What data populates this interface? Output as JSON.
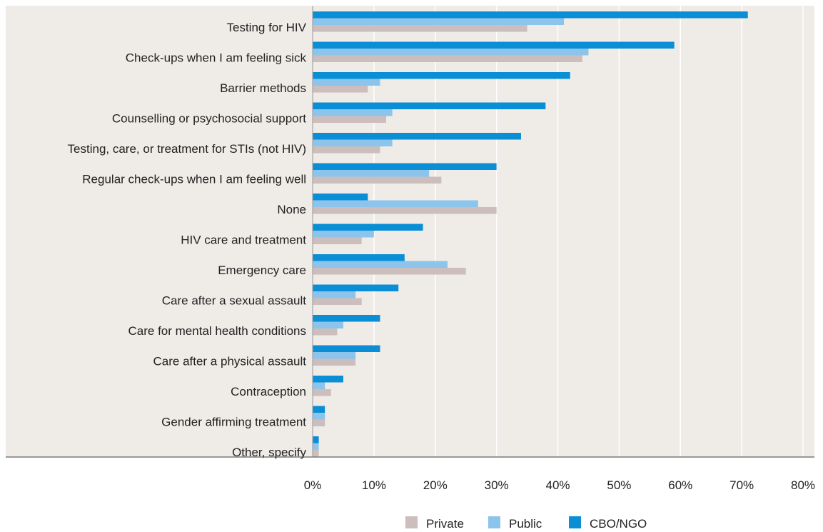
{
  "chart_data": {
    "type": "bar",
    "orientation": "horizontal",
    "categories": [
      "Testing for HIV",
      "Check-ups when I am feeling sick",
      "Barrier methods",
      "Counselling or psychosocial support",
      "Testing, care, or treatment for STIs (not HIV)",
      "Regular check-ups when I am feeling well",
      "None",
      "HIV care and treatment",
      "Emergency care",
      "Care after a sexual assault",
      "Care for mental health conditions",
      "Care after a physical assault",
      "Contraception",
      "Gender affirming treatment",
      "Other, specify"
    ],
    "series": [
      {
        "name": "CBO/NGO",
        "values": [
          71,
          59,
          42,
          38,
          34,
          30,
          9,
          18,
          15,
          14,
          11,
          11,
          5,
          2,
          1
        ]
      },
      {
        "name": "Public",
        "values": [
          41,
          45,
          11,
          13,
          13,
          19,
          27,
          10,
          22,
          7,
          5,
          7,
          2,
          2,
          1
        ]
      },
      {
        "name": "Private",
        "values": [
          35,
          44,
          9,
          12,
          11,
          21,
          30,
          8,
          25,
          8,
          4,
          7,
          3,
          2,
          1
        ]
      }
    ],
    "xticks": [
      "0%",
      "10%",
      "20%",
      "30%",
      "40%",
      "50%",
      "60%",
      "70%",
      "80%"
    ],
    "xlim": [
      0,
      80
    ],
    "unit": "%",
    "grid": true,
    "legend": {
      "placement": "bottom-center",
      "entries": [
        "Private",
        "Public",
        "CBO/NGO"
      ]
    },
    "colors": {
      "CBO/NGO": "#0a8fd6",
      "Public": "#8cc4ec",
      "Private": "#cbbebc",
      "plot_background": "#efebe7",
      "gridline": "#ffffff"
    },
    "title": "",
    "xlabel": "",
    "ylabel": ""
  }
}
